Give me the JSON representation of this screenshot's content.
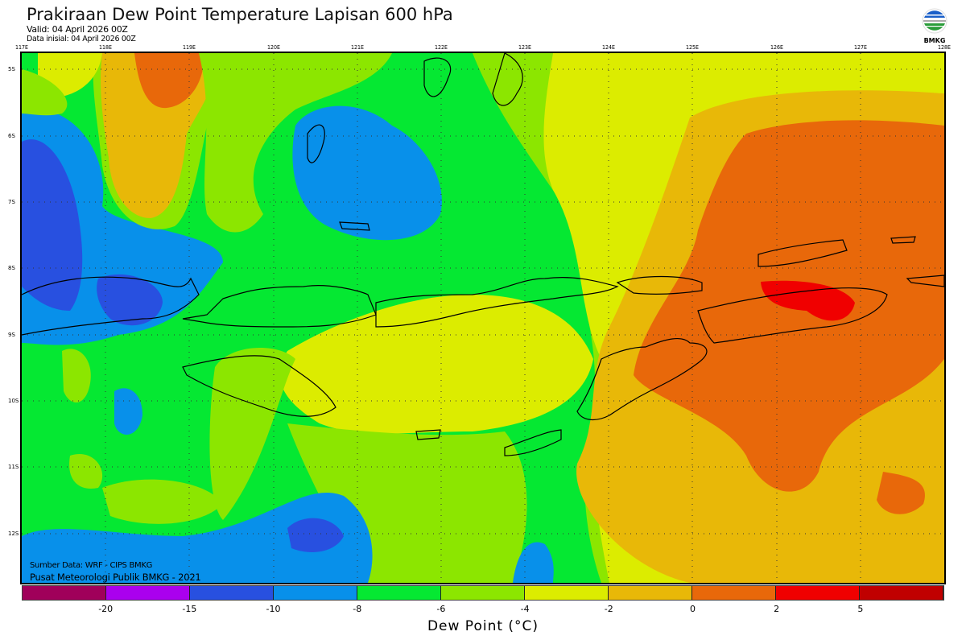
{
  "header": {
    "title": "Prakiraan Dew Point Temperature Lapisan 600 hPa",
    "valid": "Valid: 04 April 2026 00Z",
    "initial": "Data inisial: 04 April 2026 00Z"
  },
  "logo": {
    "text": "BMKG"
  },
  "axes": {
    "longitudes": [
      "117E",
      "118E",
      "119E",
      "120E",
      "121E",
      "122E",
      "123E",
      "124E",
      "125E",
      "126E",
      "127E",
      "128E"
    ],
    "latitudes": [
      "5S",
      "6S",
      "7S",
      "8S",
      "9S",
      "10S",
      "11S",
      "12S"
    ]
  },
  "footer": {
    "source": "Sumber Data: WRF - CIPS BMKG",
    "organization": "Pusat Meteorologi Publik BMKG - 2021"
  },
  "colorbar": {
    "label": "Dew Point (°C)",
    "ticks": [
      "-20",
      "-15",
      "-10",
      "-8",
      "-6",
      "-4",
      "-2",
      "0",
      "2",
      "5"
    ],
    "colors": [
      "#a0005a",
      "#aa00ee",
      "#2850e0",
      "#0890ea",
      "#05e832",
      "#8ce600",
      "#dcec00",
      "#e8b808",
      "#e8680a",
      "#f00000",
      "#c00000"
    ]
  }
}
